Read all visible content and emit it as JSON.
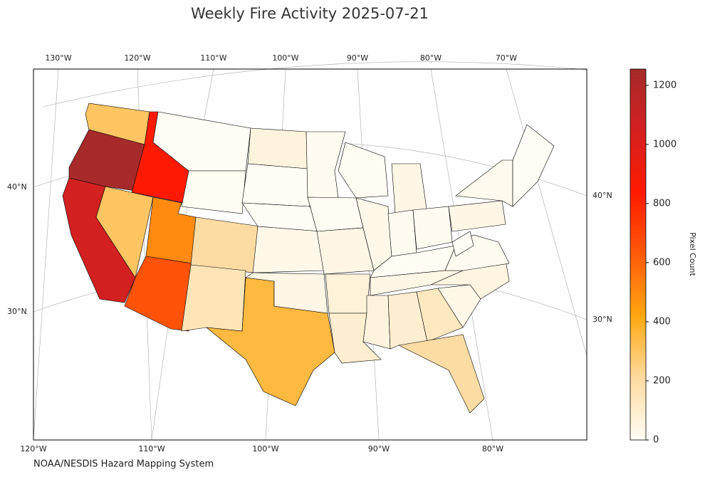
{
  "chart_data": {
    "type": "choropleth",
    "title": "Weekly Fire Activity 2025-07-21",
    "source": "NOAA/NESDIS Hazard Mapping System",
    "colorbar_label": "Pixel Count",
    "clim": [
      0,
      1255
    ],
    "colorbar_ticks": [
      0,
      200,
      400,
      600,
      800,
      1000,
      1200
    ],
    "colors": [
      "#fffdf5",
      "#fddba0",
      "#ffa812",
      "#ff5a0a",
      "#ff1a00",
      "#d42020",
      "#a52a2a"
    ],
    "graticule": {
      "top": [
        "130°W",
        "120°W",
        "110°W",
        "100°W",
        "90°W",
        "80°W",
        "70°W"
      ],
      "bottom": [
        "120°W",
        "110°W",
        "100°W",
        "90°W",
        "80°W"
      ],
      "left": [
        "40°N",
        "30°N"
      ],
      "right": [
        "40°N",
        "30°N"
      ]
    },
    "values": [
      300,
      1250,
      850,
      1050,
      300,
      500,
      650,
      200,
      150,
      350,
      0,
      5,
      60,
      0,
      0,
      30,
      40,
      10,
      5,
      40,
      70,
      90,
      5,
      30,
      40,
      10,
      10,
      5,
      40,
      60,
      90,
      130,
      200,
      30,
      50,
      10,
      0,
      40,
      20,
      0
    ]
  }
}
